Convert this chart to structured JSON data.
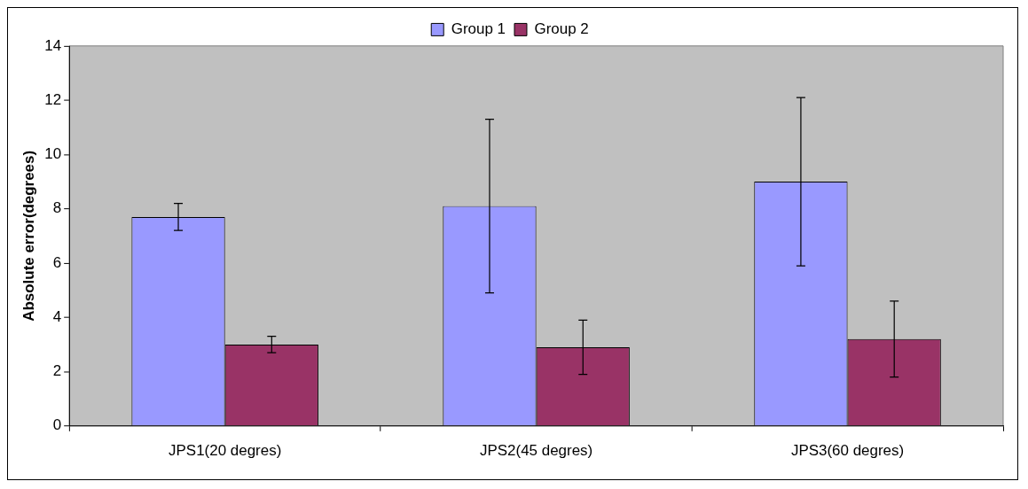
{
  "chart_data": {
    "type": "bar",
    "ylabel": "Absolute error(degrees)",
    "categories": [
      "JPS1(20 degres)",
      "JPS2(45 degres)",
      "JPS3(60 degres)"
    ],
    "series": [
      {
        "name": "Group 1",
        "color": "#9999ff",
        "values": [
          7.7,
          8.1,
          9.0
        ],
        "errors": [
          0.5,
          3.2,
          3.1
        ]
      },
      {
        "name": "Group 2",
        "color": "#993366",
        "values": [
          3.0,
          2.9,
          3.2
        ],
        "errors": [
          0.3,
          1.0,
          1.4
        ]
      }
    ],
    "ylim": [
      0,
      14
    ],
    "yticks": [
      0,
      2,
      4,
      6,
      8,
      10,
      12,
      14
    ],
    "grid": false,
    "legend": "top"
  }
}
